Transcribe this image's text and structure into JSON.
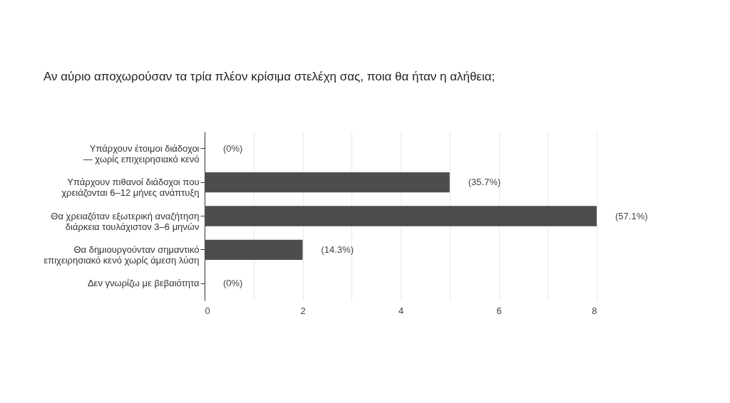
{
  "chart_data": {
    "type": "bar",
    "orientation": "horizontal",
    "title": "Αν αύριο αποχωρούσαν τα τρία πλέον κρίσιμα στελέχη σας, ποια θα ήταν η αλήθεια;",
    "categories": [
      "Υπάρχουν έτοιμοι διάδοχοι — χωρίς επιχειρησιακό κενό",
      "Υπάρχουν πιθανοί διάδοχοι που χρειάζονται 6–12 μήνες ανάπτυξη",
      "Θα χρειαζόταν εξωτερική αναζήτηση διάρκεια τουλάχιστον 3–6 μηνών",
      "Θα δημιουργούνταν σημαντικό επιχειρησιακό κενό χωρίς άμεση λύση",
      "Δεν γνωρίζω με βεβαιότητα"
    ],
    "values": [
      0,
      5,
      8,
      2,
      0
    ],
    "annotations": [
      {
        "text": "(0%)",
        "x": 0,
        "y": "Υπάρχουν έτοιμοι διάδοχοι — χωρίς επιχειρησιακό κενό"
      },
      {
        "text": "(35.7%)",
        "x": 5,
        "y": "Υπάρχουν πιθανοί διάδοχοι που χρειάζονται 6–12 μήνες ανάπτυξη"
      },
      {
        "text": "(57.1%)",
        "x": 8,
        "y": "Θα χρειαζόταν εξωτερική αναζήτηση διάρκεια τουλάχιστον 3–6 μηνών"
      },
      {
        "text": "(14.3%)",
        "x": 2,
        "y": "Θα δημιουργούνταν σημαντικό επιχειρησιακό κενό χωρίς άμεση λύση"
      },
      {
        "text": "(0%)",
        "x": 0,
        "y": "Δεν γνωρίζω με βεβαιότητα"
      }
    ],
    "color": "#4d4d4d",
    "xlim": [
      0,
      8
    ],
    "xticks": [
      0,
      {
        "value": 1,
        "label": null
      },
      2,
      {
        "value": 3,
        "label": null
      },
      4,
      {
        "value": 5,
        "label": null
      },
      6,
      {
        "value": 7,
        "label": null
      },
      8
    ],
    "grid": true
  }
}
